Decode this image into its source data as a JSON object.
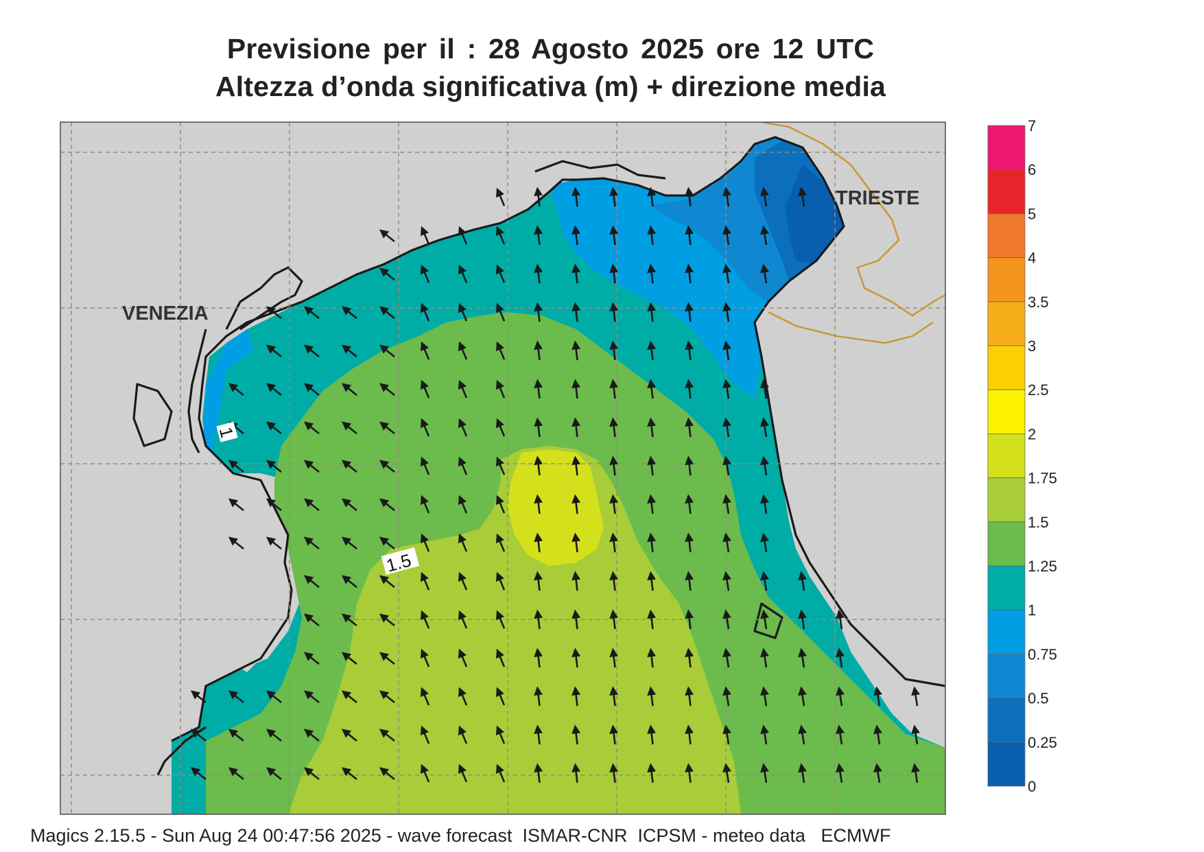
{
  "header": {
    "title_line1": "Previsione per il  :  28   Agosto  2025   ore 12 UTC",
    "title_line2": "Altezza d’onda significativa (m) + direzione media"
  },
  "map": {
    "place_labels": [
      "VENEZIA",
      "TRIESTE"
    ],
    "contour_labels": [
      "1",
      "1.5"
    ],
    "arrow_direction": "north-west",
    "colors": {
      "land": "#d0d0d0",
      "coast": "#1a1a1a",
      "border": "#c9962e",
      "grid": "#9a8a78"
    }
  },
  "legend": {
    "levels": [
      {
        "label": "7",
        "color": ""
      },
      {
        "label": "6",
        "color": "#ee1873"
      },
      {
        "label": "5",
        "color": "#e8242b"
      },
      {
        "label": "4",
        "color": "#f0782a"
      },
      {
        "label": "3.5",
        "color": "#f5941f"
      },
      {
        "label": "3",
        "color": "#f7ae1b"
      },
      {
        "label": "2.5",
        "color": "#fccf05"
      },
      {
        "label": "2",
        "color": "#fdf200"
      },
      {
        "label": "1.75",
        "color": "#d5e01d"
      },
      {
        "label": "1.5",
        "color": "#a8cd38"
      },
      {
        "label": "1.25",
        "color": "#6cbb4d"
      },
      {
        "label": "1",
        "color": "#00aca6"
      },
      {
        "label": "0.75",
        "color": "#009fe3"
      },
      {
        "label": "0.5",
        "color": "#0f88d1"
      },
      {
        "label": "0.25",
        "color": "#0b6fbd"
      },
      {
        "label": "0",
        "color": "#075fae"
      }
    ]
  },
  "footer": {
    "text": "Magics 2.15.5 - Sun Aug 24 00:47:56 2025 - wave forecast  ISMAR-CNR  ICPSM - meteo data   ECMWF"
  }
}
